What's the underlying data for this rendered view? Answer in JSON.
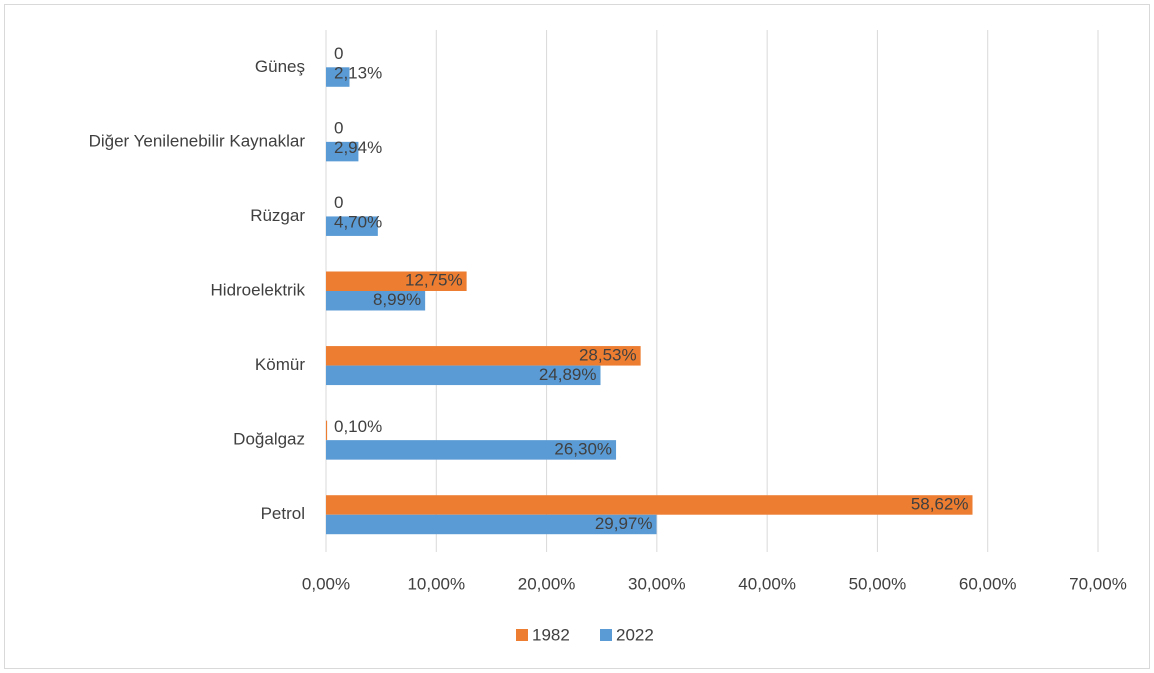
{
  "chart_data": {
    "type": "bar",
    "orientation": "horizontal",
    "categories": [
      "Petrol",
      "Doğalgaz",
      "Kömür",
      "Hidroelektrik",
      "Rüzgar",
      "Diğer Yenilenebilir Kaynaklar",
      "Güneş"
    ],
    "series": [
      {
        "name": "1982",
        "color": "#ed7d31",
        "values": [
          58.62,
          0.1,
          28.53,
          12.75,
          0,
          0,
          0
        ],
        "value_labels": [
          "58,62%",
          "0,10%",
          "28,53%",
          "12,75%",
          "0",
          "0",
          "0"
        ]
      },
      {
        "name": "2022",
        "color": "#5b9bd5",
        "values": [
          29.97,
          26.3,
          24.89,
          8.99,
          4.7,
          2.94,
          2.13
        ],
        "value_labels": [
          "29,97%",
          "26,30%",
          "24,89%",
          "8,99%",
          "4,70%",
          "2,94%",
          "2,13%"
        ]
      }
    ],
    "xlim": [
      0,
      70
    ],
    "xticks": [
      {
        "value": 0,
        "label": "0,00%"
      },
      {
        "value": 10,
        "label": "10,00%"
      },
      {
        "value": 20,
        "label": "20,00%"
      },
      {
        "value": 30,
        "label": "30,00%"
      },
      {
        "value": 40,
        "label": "40,00%"
      },
      {
        "value": 50,
        "label": "50,00%"
      },
      {
        "value": 60,
        "label": "60,00%"
      },
      {
        "value": 70,
        "label": "70,00%"
      }
    ],
    "grid": true,
    "legend": "bottom"
  }
}
